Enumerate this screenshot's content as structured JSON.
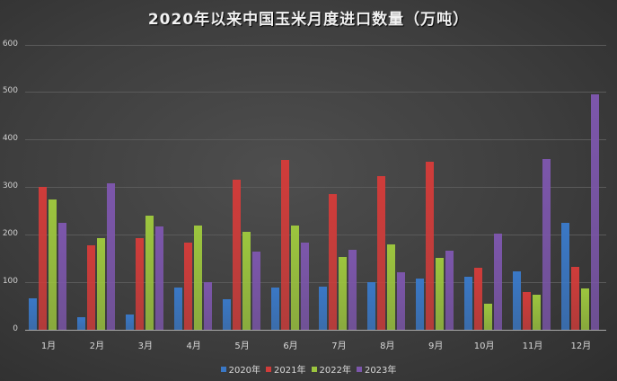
{
  "chart_data": {
    "type": "bar",
    "title": "2020年以来中国玉米月度进口数量（万吨）",
    "xlabel": "",
    "ylabel": "",
    "ylim": [
      0,
      600
    ],
    "yticks": [
      0,
      100,
      200,
      300,
      400,
      500,
      600
    ],
    "grid": true,
    "legend_position": "bottom",
    "categories": [
      "1月",
      "2月",
      "3月",
      "4月",
      "5月",
      "6月",
      "7月",
      "8月",
      "9月",
      "10月",
      "11月",
      "12月"
    ],
    "series": [
      {
        "name": "2020年",
        "color": "#3a78c6",
        "values": [
          66,
          26,
          32,
          88,
          64,
          88,
          90,
          101,
          107,
          112,
          122,
          224
        ]
      },
      {
        "name": "2021年",
        "color": "#d03c3a",
        "values": [
          300,
          177,
          192,
          184,
          316,
          357,
          286,
          324,
          354,
          130,
          79,
          133
        ]
      },
      {
        "name": "2022年",
        "color": "#9cc53e",
        "values": [
          274,
          192,
          240,
          220,
          206,
          220,
          154,
          179,
          152,
          55,
          73,
          87
        ]
      },
      {
        "name": "2023年",
        "color": "#7c56ab",
        "values": [
          224,
          308,
          218,
          100,
          165,
          184,
          168,
          121,
          166,
          203,
          359,
          495
        ]
      }
    ]
  }
}
